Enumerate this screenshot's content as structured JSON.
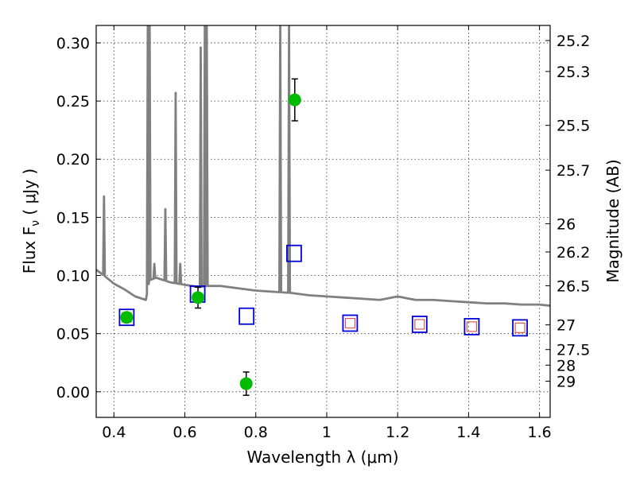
{
  "chart_data": {
    "type": "scatter",
    "title": "",
    "xlabel": "Wavelength  λ (μm)",
    "ylabel": "Flux  F",
    "ylabel_sub": "ν",
    "ylabel_unit": " ( μJy )",
    "y2label": "Magnitude (AB)",
    "xlim": [
      0.35,
      1.63
    ],
    "ylim": [
      -0.022,
      0.315
    ],
    "grid": true,
    "x_ticks": [
      0.4,
      0.6,
      0.8,
      1.0,
      1.2,
      1.4,
      1.6
    ],
    "x_tick_labels": [
      "0.4",
      "0.6",
      "0.8",
      "1",
      "1.2",
      "1.4",
      "1.6"
    ],
    "y_ticks": [
      0.0,
      0.05,
      0.1,
      0.15,
      0.2,
      0.25,
      0.3
    ],
    "y_tick_labels": [
      "0.00",
      "0.05",
      "0.10",
      "0.15",
      "0.20",
      "0.25",
      "0.30"
    ],
    "mag_ticks": [
      {
        "label": "25.2",
        "mag": 25.2
      },
      {
        "label": "25.3",
        "mag": 25.3
      },
      {
        "label": "25.5",
        "mag": 25.5
      },
      {
        "label": "25.7",
        "mag": 25.7
      },
      {
        "label": "26",
        "mag": 26.0
      },
      {
        "label": "26.2",
        "mag": 26.2
      },
      {
        "label": "26.5",
        "mag": 26.5
      },
      {
        "label": "27",
        "mag": 27.0
      },
      {
        "label": "27.5",
        "mag": 27.5
      },
      {
        "label": "28",
        "mag": 28.0
      },
      {
        "label": "29",
        "mag": 29.0
      }
    ],
    "colors": {
      "model": "#808080",
      "observed": "#00bb00",
      "model_box": "#0000dd",
      "inner_box_green": "#77cc77",
      "inner_box_red": "#dd5555",
      "errorbar": "#000000"
    },
    "model_spectrum": {
      "continuum": [
        [
          0.35,
          0.105
        ],
        [
          0.38,
          0.098
        ],
        [
          0.4,
          0.093
        ],
        [
          0.43,
          0.088
        ],
        [
          0.46,
          0.082
        ],
        [
          0.49,
          0.079
        ],
        [
          0.5,
          0.096
        ],
        [
          0.52,
          0.098
        ],
        [
          0.54,
          0.096
        ],
        [
          0.56,
          0.094
        ],
        [
          0.58,
          0.093
        ],
        [
          0.6,
          0.092
        ],
        [
          0.62,
          0.091
        ],
        [
          0.64,
          0.09
        ],
        [
          0.66,
          0.091
        ],
        [
          0.7,
          0.091
        ],
        [
          0.75,
          0.089
        ],
        [
          0.8,
          0.087
        ],
        [
          0.85,
          0.086
        ],
        [
          0.9,
          0.085
        ],
        [
          0.95,
          0.083
        ],
        [
          1.0,
          0.082
        ],
        [
          1.05,
          0.081
        ],
        [
          1.1,
          0.08
        ],
        [
          1.15,
          0.079
        ],
        [
          1.2,
          0.082
        ],
        [
          1.25,
          0.079
        ],
        [
          1.3,
          0.079
        ],
        [
          1.35,
          0.078
        ],
        [
          1.4,
          0.077
        ],
        [
          1.45,
          0.076
        ],
        [
          1.5,
          0.076
        ],
        [
          1.55,
          0.075
        ],
        [
          1.6,
          0.075
        ],
        [
          1.63,
          0.074
        ]
      ],
      "emission_lines": [
        {
          "x": 0.372,
          "peak": 0.168
        },
        {
          "x": 0.4955,
          "peak": 0.315
        },
        {
          "x": 0.5007,
          "peak": 0.315
        },
        {
          "x": 0.514,
          "peak": 0.11
        },
        {
          "x": 0.545,
          "peak": 0.157
        },
        {
          "x": 0.574,
          "peak": 0.257
        },
        {
          "x": 0.587,
          "peak": 0.11
        },
        {
          "x": 0.6448,
          "peak": 0.296
        },
        {
          "x": 0.6563,
          "peak": 0.315
        },
        {
          "x": 0.6618,
          "peak": 0.315
        },
        {
          "x": 0.869,
          "peak": 0.315
        },
        {
          "x": 0.8938,
          "peak": 0.315
        }
      ]
    },
    "observed": [
      {
        "x": 0.436,
        "y": 0.064,
        "err": 0.0
      },
      {
        "x": 0.637,
        "y": 0.081,
        "err": 0.009
      },
      {
        "x": 0.773,
        "y": 0.007,
        "err": 0.01
      },
      {
        "x": 0.91,
        "y": 0.251,
        "err": 0.018
      }
    ],
    "model_fluxes": [
      {
        "x": 0.436,
        "y": 0.064,
        "inner": "green"
      },
      {
        "x": 0.636,
        "y": 0.084,
        "inner": "none"
      },
      {
        "x": 0.774,
        "y": 0.065,
        "inner": "none"
      },
      {
        "x": 0.908,
        "y": 0.119,
        "inner": "none"
      },
      {
        "x": 1.066,
        "y": 0.059,
        "inner": "red"
      },
      {
        "x": 1.262,
        "y": 0.058,
        "inner": "red"
      },
      {
        "x": 1.409,
        "y": 0.056,
        "inner": "red"
      },
      {
        "x": 1.545,
        "y": 0.055,
        "inner": "red"
      }
    ]
  }
}
